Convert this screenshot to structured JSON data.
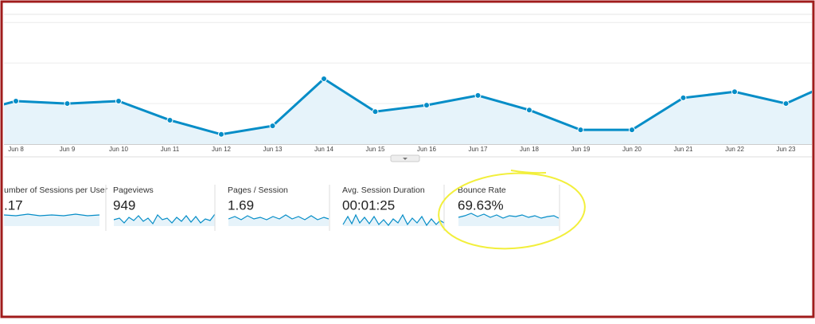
{
  "main_chart": {
    "type": "line",
    "categories": [
      null,
      "Jun 8",
      "Jun 9",
      "Jun 10",
      "Jun 11",
      "Jun 12",
      "Jun 13",
      "Jun 14",
      "Jun 15",
      "Jun 16",
      "Jun 17",
      "Jun 18",
      "Jun 19",
      "Jun 20",
      "Jun 21",
      "Jun 22",
      "Jun 23",
      null
    ],
    "values": [
      7.3,
      10.6,
      10,
      10.6,
      5.9,
      2.4,
      4.5,
      16.1,
      8,
      9.6,
      12,
      8.4,
      3.5,
      3.5,
      11.4,
      12.9,
      10,
      15.7
    ],
    "ylim": [
      0,
      32
    ],
    "yticks": [
      0,
      10,
      20,
      30
    ],
    "grid": true,
    "color": "#058dc7"
  },
  "metrics": [
    {
      "label": "umber of Sessions per User",
      "value": ".17"
    },
    {
      "label": "Pageviews",
      "value": "949"
    },
    {
      "label": "Pages / Session",
      "value": "1.69"
    },
    {
      "label": "Avg. Session Duration",
      "value": "00:01:25"
    },
    {
      "label": "Bounce Rate",
      "value": "69.63%"
    }
  ]
}
